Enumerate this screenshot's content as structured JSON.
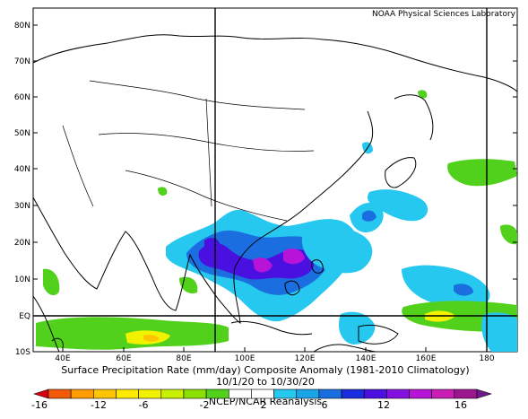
{
  "header": {
    "credit": "NOAA Physical Sciences Laboratory"
  },
  "map": {
    "lat_labels": [
      "80N",
      "70N",
      "60N",
      "50N",
      "40N",
      "30N",
      "20N",
      "10N",
      "EQ",
      "10S"
    ],
    "lon_labels": [
      "40E",
      "60E",
      "80E",
      "100E",
      "120E",
      "140E",
      "160E",
      "180"
    ]
  },
  "caption": {
    "title": "Surface Precipitation Rate (mm/day) Composite Anomaly (1981-2010 Climatology)",
    "period": "10/1/20 to 10/30/20",
    "source": "NCEP/NCAR Reanalysis"
  },
  "colorbar": {
    "tick_labels": [
      "-16",
      "-12",
      "-6",
      "-2",
      "2",
      "6",
      "12",
      "16"
    ],
    "colors": [
      "#d9000d",
      "#f25a0a",
      "#ff9d00",
      "#ffc400",
      "#ffea00",
      "#f2f200",
      "#c8f000",
      "#8ce000",
      "#52d11c",
      "#ffffff",
      "#ffffff",
      "#27c8f0",
      "#1aa5e8",
      "#1a6ee0",
      "#1a2ee0",
      "#4a10e0",
      "#8410e0",
      "#b814d8",
      "#c81eb4",
      "#9c1690",
      "#6e1a8c"
    ]
  },
  "colors": {
    "green": "#52d11c",
    "light_green": "#8ce000",
    "yellow": "#f2f200",
    "cyan": "#27c8f0",
    "blue": "#1a6ee0",
    "purple": "#4a10e0",
    "magenta": "#b814d8"
  }
}
